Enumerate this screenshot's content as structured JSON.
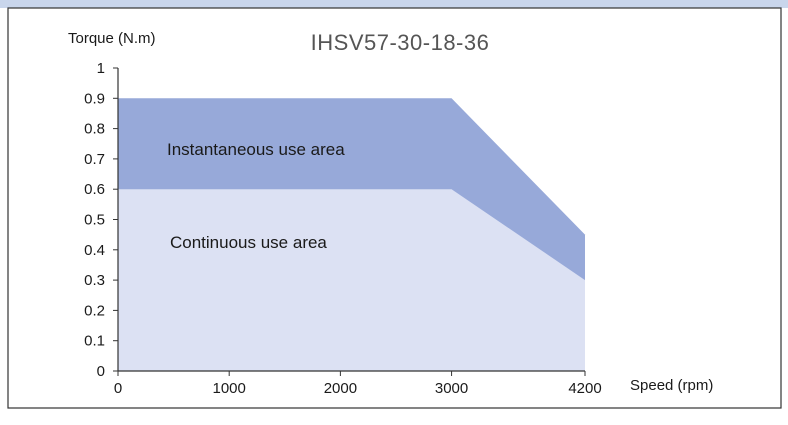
{
  "chart_data": {
    "type": "area",
    "title": "IHSV57-30-18-36",
    "xlabel": "Speed (rpm)",
    "ylabel": "Torque (N.m)",
    "xlim": [
      0,
      4200
    ],
    "ylim": [
      0,
      1
    ],
    "x_ticks": [
      "0",
      "1000",
      "2000",
      "3000",
      "4200"
    ],
    "x_tick_values": [
      0,
      1000,
      2000,
      3000,
      4200
    ],
    "y_ticks": [
      "0",
      "0.1",
      "0.2",
      "0.3",
      "0.4",
      "0.5",
      "0.6",
      "0.7",
      "0.8",
      "0.9",
      "1"
    ],
    "y_tick_values": [
      0,
      0.1,
      0.2,
      0.3,
      0.4,
      0.5,
      0.6,
      0.7,
      0.8,
      0.9,
      1
    ],
    "grid": false,
    "series": [
      {
        "name": "Instantaneous use area",
        "x": [
          0,
          3000,
          4200
        ],
        "y": [
          0.9,
          0.9,
          0.45
        ]
      },
      {
        "name": "Continuous use area",
        "x": [
          0,
          3000,
          4200
        ],
        "y": [
          0.6,
          0.6,
          0.3
        ]
      }
    ],
    "colors": {
      "instantaneous": "#97a9d9",
      "continuous": "#dce1f3",
      "header_band": "#c9d6ec",
      "frame": "#333333"
    }
  }
}
